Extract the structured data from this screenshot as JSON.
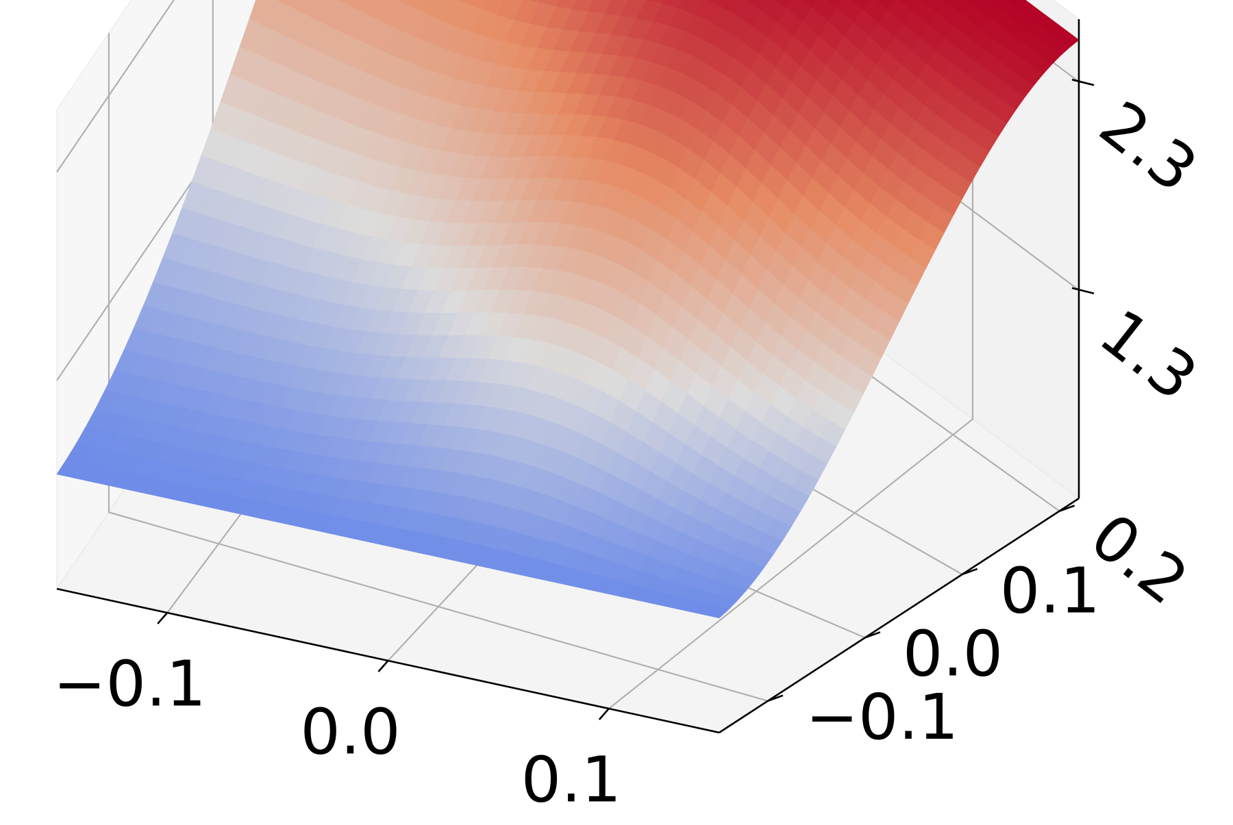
{
  "chart_data": {
    "type": "surface3d",
    "title": "",
    "xlabel": "",
    "ylabel": "",
    "zlabel": "",
    "grid": true,
    "colormap": "coolwarm-like (blue low, red high)",
    "xlim": [
      -0.15,
      0.15
    ],
    "ylim": [
      -0.15,
      0.22
    ],
    "zlim": [
      0.3,
      2.6
    ],
    "x_ticks": [
      -0.1,
      0.0,
      0.1
    ],
    "x_tick_labels": [
      "−0.1",
      "0.0",
      "0.1"
    ],
    "y_ticks": [
      -0.1,
      0.0,
      0.1,
      0.2
    ],
    "y_tick_labels": [
      "−0.1",
      "0.0",
      "0.1",
      "0.2"
    ],
    "z_ticks": [
      1.3,
      2.3
    ],
    "z_tick_labels": [
      "1.3",
      "2.3"
    ],
    "surface_z_range": [
      0.3,
      2.5
    ],
    "colors": {
      "low": "#3b4cc0",
      "mid": "#dddcdc",
      "high": "#b40426",
      "pane": "#f2f2f2",
      "grid": "#b0b0b0"
    }
  }
}
